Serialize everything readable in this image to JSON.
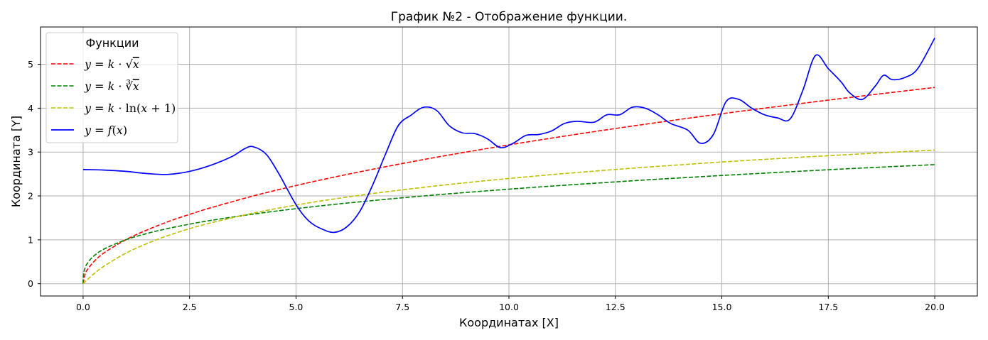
{
  "chart_data": {
    "type": "line",
    "title": "График №2 - Отображение функции.",
    "xlabel": "Координатах [X]",
    "ylabel": "Координата [Y]",
    "xlim": [
      -1.0,
      21.0
    ],
    "ylim": [
      -0.28,
      5.85
    ],
    "xticks": [
      0.0,
      2.5,
      5.0,
      7.5,
      10.0,
      12.5,
      15.0,
      17.5,
      20.0
    ],
    "xtick_labels": [
      "0.0",
      "2.5",
      "5.0",
      "7.5",
      "10.0",
      "12.5",
      "15.0",
      "17.5",
      "20.0"
    ],
    "yticks": [
      0,
      1,
      2,
      3,
      4,
      5
    ],
    "ytick_labels": [
      "0",
      "1",
      "2",
      "3",
      "4",
      "5"
    ],
    "grid": true,
    "legend": {
      "title": "Функции",
      "placement": "top-left"
    },
    "series": [
      {
        "name": "y = k·√x",
        "color": "#ff0000",
        "dashed": true,
        "x": [
          0,
          0.05,
          0.1,
          0.25,
          0.5,
          1,
          1.5,
          2,
          2.5,
          3,
          4,
          5,
          6,
          7,
          8,
          9,
          10,
          11,
          12,
          13,
          14,
          15,
          16,
          17,
          18,
          19,
          20
        ],
        "y": [
          0,
          0.224,
          0.317,
          0.5,
          0.708,
          1.0,
          1.225,
          1.415,
          1.58,
          1.73,
          2.0,
          2.237,
          2.45,
          2.646,
          2.83,
          3.0,
          3.163,
          3.317,
          3.465,
          3.606,
          3.742,
          3.873,
          4.0,
          4.123,
          4.243,
          4.359,
          4.472
        ]
      },
      {
        "name": "y = k·∛x",
        "color": "#008000",
        "dashed": true,
        "x": [
          0,
          0.01,
          0.05,
          0.1,
          0.25,
          0.5,
          1,
          1.5,
          2,
          2.5,
          3,
          4,
          5,
          6,
          7,
          8,
          9,
          10,
          11,
          12,
          13,
          14,
          15,
          16,
          17,
          18,
          19,
          20
        ],
        "y": [
          0,
          0.215,
          0.368,
          0.464,
          0.63,
          0.794,
          1.0,
          1.145,
          1.26,
          1.357,
          1.442,
          1.587,
          1.71,
          1.817,
          1.913,
          2.0,
          2.08,
          2.154,
          2.224,
          2.289,
          2.351,
          2.41,
          2.466,
          2.52,
          2.571,
          2.621,
          2.668,
          2.714
        ]
      },
      {
        "name": "y = k·ln(x+1)",
        "color": "#bfbf00",
        "dashed": true,
        "x": [
          0,
          0.25,
          0.5,
          1,
          1.5,
          2,
          2.5,
          3,
          4,
          5,
          6,
          7,
          8,
          9,
          10,
          11,
          12,
          13,
          14,
          15,
          16,
          17,
          18,
          19,
          20
        ],
        "y": [
          0,
          0.223,
          0.405,
          0.693,
          0.916,
          1.099,
          1.253,
          1.386,
          1.609,
          1.792,
          1.946,
          2.079,
          2.197,
          2.303,
          2.398,
          2.485,
          2.565,
          2.639,
          2.708,
          2.773,
          2.833,
          2.89,
          2.944,
          2.996,
          3.045
        ]
      },
      {
        "name": "y = f(x)",
        "color": "#0000ff",
        "dashed": false,
        "x": [
          0,
          0.5,
          1.0,
          1.5,
          2.0,
          2.5,
          3.0,
          3.5,
          3.8,
          4.0,
          4.3,
          4.6,
          5.0,
          5.3,
          5.6,
          5.9,
          6.2,
          6.5,
          6.8,
          7.1,
          7.4,
          7.7,
          8.0,
          8.3,
          8.6,
          8.9,
          9.2,
          9.5,
          9.8,
          10.1,
          10.4,
          10.7,
          11.0,
          11.3,
          11.6,
          12.0,
          12.3,
          12.6,
          12.9,
          13.2,
          13.5,
          13.8,
          14.2,
          14.5,
          14.8,
          15.1,
          15.4,
          15.7,
          16.0,
          16.3,
          16.6,
          16.9,
          17.2,
          17.5,
          17.8,
          18.0,
          18.3,
          18.6,
          18.8,
          19.0,
          19.3,
          19.6,
          20.0
        ],
        "y": [
          2.6,
          2.59,
          2.56,
          2.51,
          2.49,
          2.56,
          2.7,
          2.9,
          3.08,
          3.12,
          2.95,
          2.5,
          1.8,
          1.43,
          1.25,
          1.17,
          1.3,
          1.65,
          2.25,
          2.95,
          3.6,
          3.84,
          4.02,
          3.95,
          3.6,
          3.44,
          3.42,
          3.3,
          3.1,
          3.2,
          3.38,
          3.4,
          3.48,
          3.65,
          3.7,
          3.68,
          3.85,
          3.85,
          4.02,
          4.0,
          3.85,
          3.65,
          3.5,
          3.2,
          3.4,
          4.15,
          4.2,
          4.0,
          3.85,
          3.78,
          3.75,
          4.4,
          5.2,
          4.9,
          4.6,
          4.35,
          4.2,
          4.5,
          4.75,
          4.65,
          4.7,
          4.9,
          5.6
        ]
      }
    ]
  }
}
